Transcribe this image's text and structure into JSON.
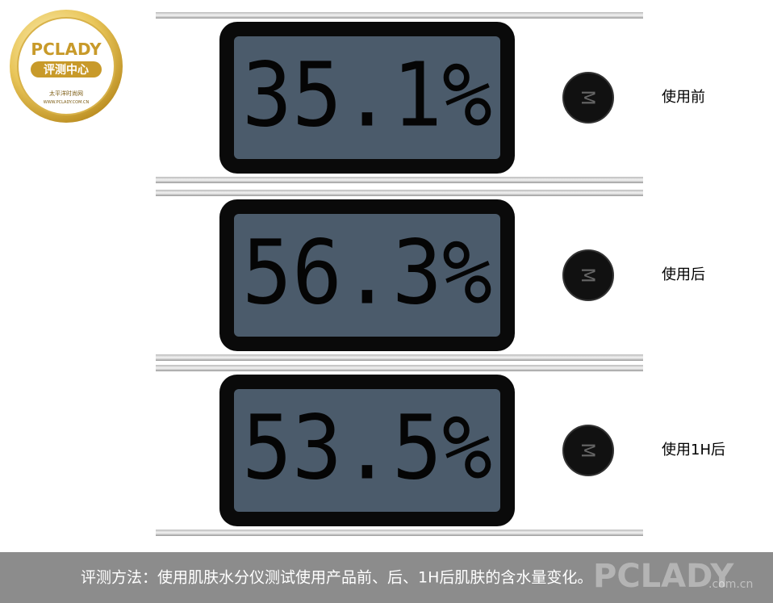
{
  "logo": {
    "brand": "PCLADY",
    "subtitle": "评测中心",
    "site_cn": "太平洋时尚网",
    "site_url": "WWW.PCLADY.COM.CN"
  },
  "readings": [
    {
      "display": "35.1%",
      "label": "使用前"
    },
    {
      "display": "56.3%",
      "label": "使用后"
    },
    {
      "display": "53.5%",
      "label": "使用1H后"
    }
  ],
  "button_label": "M",
  "caption": "评测方法：使用肌肤水分仪测试使用产品前、后、1H后肌肤的含水量变化。",
  "watermark": {
    "brand": "PCLADY",
    "domain": ".com.cn"
  }
}
